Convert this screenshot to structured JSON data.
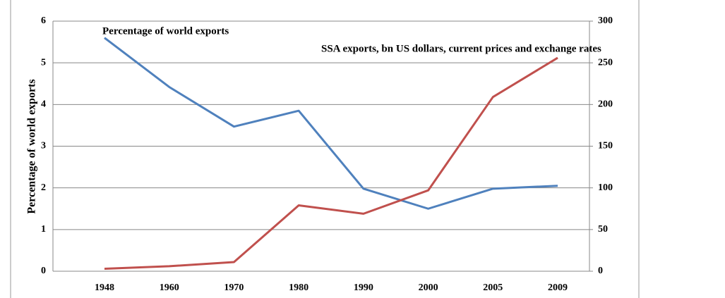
{
  "chart_data": {
    "type": "line",
    "y_label": "Percentage of world exports",
    "annotations": [
      "Percentage of world exports",
      "SSA exports, bn US dollars, current prices and exchange rates"
    ],
    "categories": [
      "1948",
      "1960",
      "1970",
      "1980",
      "1990",
      "2000",
      "2005",
      "2009"
    ],
    "series": [
      {
        "name": "Percentage of world exports",
        "color": "#4f81bd",
        "values": [
          5.6,
          4.42,
          3.47,
          3.85,
          1.98,
          1.5,
          1.98,
          2.05
        ]
      },
      {
        "name": "SSA exports, bn US dollars, current prices and exchange rates",
        "color": "#c0504d",
        "axis": "y2",
        "values": [
          3,
          6,
          11,
          79,
          69,
          97,
          209,
          256
        ]
      }
    ],
    "ylim": [
      0,
      6
    ],
    "yticks": [
      0,
      1,
      2,
      3,
      4,
      5,
      6
    ],
    "y2lim": [
      0,
      300
    ],
    "y2ticks": [
      0,
      50,
      100,
      150,
      200,
      250,
      300
    ],
    "grid": true
  }
}
